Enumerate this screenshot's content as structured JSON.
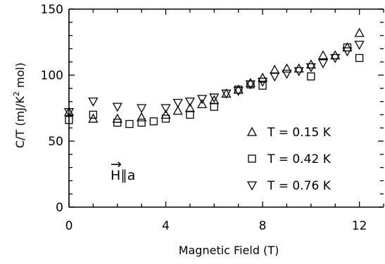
{
  "chart_data": {
    "type": "scatter",
    "title": "",
    "xlabel": "Magnetic Field (T)",
    "ylabel": "C/T (mJ/K² mol)",
    "ylabel_parts": {
      "before": "C/T (mJ/K",
      "sup": "2",
      "after": " mol)"
    },
    "xlim": [
      0,
      13
    ],
    "ylim": [
      0,
      150
    ],
    "x_ticks": [
      0,
      4,
      8,
      12
    ],
    "y_ticks": [
      0,
      50,
      100,
      150
    ],
    "annotation": {
      "vec": "→",
      "text": "H∥a"
    },
    "legend_position": "right",
    "series": [
      {
        "name": "T = 0.15 K",
        "marker": "triangle-up",
        "points": [
          [
            0,
            72
          ],
          [
            1,
            67
          ],
          [
            2,
            67
          ],
          [
            3,
            68
          ],
          [
            4,
            70
          ],
          [
            4.5,
            73
          ],
          [
            5,
            75
          ],
          [
            5.5,
            78
          ],
          [
            6,
            81
          ],
          [
            6.5,
            86
          ],
          [
            7,
            89
          ],
          [
            7.5,
            94
          ],
          [
            8,
            98
          ],
          [
            8.5,
            104
          ],
          [
            9,
            105
          ],
          [
            9.5,
            105
          ],
          [
            10,
            108
          ],
          [
            10.5,
            115
          ],
          [
            11,
            115
          ],
          [
            11.5,
            121
          ],
          [
            12,
            132
          ]
        ]
      },
      {
        "name": "T = 0.42 K",
        "marker": "square",
        "points": [
          [
            0,
            66
          ],
          [
            1,
            70
          ],
          [
            2,
            64
          ],
          [
            2.5,
            63
          ],
          [
            3,
            64
          ],
          [
            3.5,
            65
          ],
          [
            4,
            67
          ],
          [
            5,
            70
          ],
          [
            6,
            76
          ],
          [
            7,
            89
          ],
          [
            7.5,
            93
          ],
          [
            8,
            92
          ],
          [
            10,
            99
          ],
          [
            11.5,
            121
          ],
          [
            12,
            113
          ]
        ]
      },
      {
        "name": "T = 0.76 K",
        "marker": "triangle-down",
        "points": [
          [
            0,
            72
          ],
          [
            1,
            80
          ],
          [
            2,
            76
          ],
          [
            3,
            75
          ],
          [
            4,
            75
          ],
          [
            4.5,
            79
          ],
          [
            5,
            80
          ],
          [
            5.5,
            82
          ],
          [
            6,
            83
          ],
          [
            6.5,
            86
          ],
          [
            7,
            88
          ],
          [
            7.5,
            93
          ],
          [
            8,
            95
          ],
          [
            8.5,
            99
          ],
          [
            9,
            101
          ],
          [
            9.5,
            103
          ],
          [
            10,
            106
          ],
          [
            10.5,
            109
          ],
          [
            11,
            113
          ],
          [
            11.5,
            118
          ],
          [
            12,
            123
          ]
        ]
      }
    ]
  }
}
